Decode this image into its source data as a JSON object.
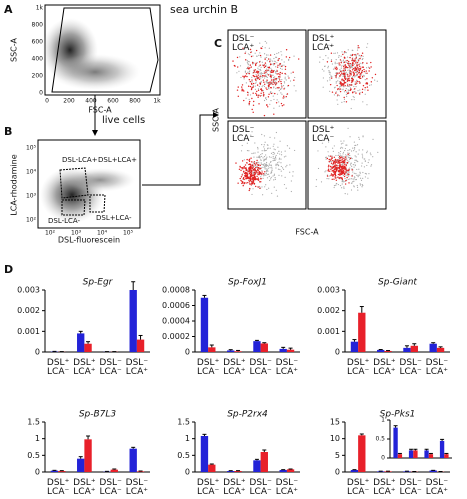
{
  "panel_a": {
    "label": "A",
    "title": "sea urchin B",
    "xlabel": "FSC-A",
    "ylabel": "SSC-A",
    "ticks": [
      "0",
      "200",
      "400",
      "600",
      "800",
      "1k"
    ],
    "gate_label": "live cells"
  },
  "panel_b": {
    "label": "B",
    "xlabel": "DSL-fluorescein",
    "ylabel": "LCA-rhodamine",
    "gates": [
      "DSL+LCA+",
      "DSL-LCA+",
      "DSL-LCA-",
      "DSL+LCA-"
    ],
    "ticks": [
      "10²",
      "10³",
      "10⁴",
      "10⁵"
    ]
  },
  "panel_c": {
    "label": "C",
    "xlabel": "FSC-A",
    "ylabel": "SSC-A",
    "quadrants": [
      "DSL⁻ LCA⁺",
      "DSL⁺ LCA⁺",
      "DSL⁻ LCA⁻",
      "DSL⁺ LCA⁻"
    ]
  },
  "panel_d": {
    "label": "D"
  },
  "chart_data": [
    {
      "type": "bar",
      "title": "Sp-Egr",
      "categories": [
        "DSL⁺ LCA⁻",
        "DSL⁺ LCA⁺",
        "DSL⁻ LCA⁻",
        "DSL⁻ LCA⁺"
      ],
      "ylim": [
        0,
        0.003
      ],
      "yticks": [
        0,
        0.001,
        0.002,
        0.003
      ],
      "series": [
        {
          "color": "#2323d8",
          "values": [
            2e-05,
            0.0009,
            1e-05,
            0.003
          ],
          "errors": [
            1e-05,
            0.0001,
            1e-05,
            0.0004
          ]
        },
        {
          "color": "#e8202a",
          "values": [
            1e-05,
            0.0004,
            1e-05,
            0.0006
          ],
          "errors": [
            1e-05,
            0.0001,
            1e-05,
            0.0002
          ]
        }
      ]
    },
    {
      "type": "bar",
      "title": "Sp-FoxJ1",
      "categories": [
        "DSL⁺ LCA⁻",
        "DSL⁺ LCA⁺",
        "DSL⁻ LCA⁻",
        "DSL⁻ LCA⁺"
      ],
      "ylim": [
        0,
        0.0008
      ],
      "yticks": [
        0,
        0.0002,
        0.0004,
        0.0006,
        0.0008
      ],
      "series": [
        {
          "color": "#2323d8",
          "values": [
            0.0007,
            2e-05,
            0.00014,
            4e-05
          ],
          "errors": [
            3e-05,
            1e-05,
            1e-05,
            2e-05
          ]
        },
        {
          "color": "#e8202a",
          "values": [
            6e-05,
            1e-05,
            0.00011,
            3e-05
          ],
          "errors": [
            3e-05,
            1e-05,
            1e-05,
            2e-05
          ]
        }
      ]
    },
    {
      "type": "bar",
      "title": "Sp-Giant",
      "categories": [
        "DSL⁺ LCA⁻",
        "DSL⁺ LCA⁺",
        "DSL⁻ LCA⁻",
        "DSL⁻ LCA⁺"
      ],
      "ylim": [
        0,
        0.003
      ],
      "yticks": [
        0,
        0.001,
        0.002,
        0.003
      ],
      "series": [
        {
          "color": "#2323d8",
          "values": [
            0.0005,
            0.0001,
            0.0002,
            0.0004
          ],
          "errors": [
            0.0001,
            2e-05,
            0.0001,
            5e-05
          ]
        },
        {
          "color": "#e8202a",
          "values": [
            0.0019,
            5e-05,
            0.0003,
            0.0002
          ],
          "errors": [
            0.0003,
            2e-05,
            0.0001,
            5e-05
          ]
        }
      ]
    },
    {
      "type": "bar",
      "title": "Sp-B7L3",
      "categories": [
        "DSL⁺ LCA⁻",
        "DSL⁺ LCA⁺",
        "DSL⁻ LCA⁻",
        "DSL⁻ LCA⁺"
      ],
      "ylim": [
        0,
        1.5
      ],
      "yticks": [
        0,
        0.5,
        1,
        1.5
      ],
      "series": [
        {
          "color": "#2323d8",
          "values": [
            0.04,
            0.4,
            0.01,
            0.7
          ],
          "errors": [
            0.01,
            0.06,
            0.01,
            0.04
          ]
        },
        {
          "color": "#e8202a",
          "values": [
            0.03,
            0.98,
            0.07,
            0.02
          ],
          "errors": [
            0.01,
            0.1,
            0.02,
            0.01
          ]
        }
      ]
    },
    {
      "type": "bar",
      "title": "Sp-P2rx4",
      "categories": [
        "DSL⁺ LCA⁻",
        "DSL⁺ LCA⁺",
        "DSL⁻ LCA⁻",
        "DSL⁻ LCA⁺"
      ],
      "ylim": [
        0,
        1.5
      ],
      "yticks": [
        0,
        0.5,
        1,
        1.5
      ],
      "series": [
        {
          "color": "#2323d8",
          "values": [
            1.08,
            0.03,
            0.35,
            0.06
          ],
          "errors": [
            0.05,
            0.01,
            0.03,
            0.01
          ]
        },
        {
          "color": "#e8202a",
          "values": [
            0.22,
            0.03,
            0.6,
            0.08
          ],
          "errors": [
            0.02,
            0.01,
            0.06,
            0.01
          ]
        }
      ]
    },
    {
      "type": "bar",
      "title": "Sp-Pks1",
      "categories": [
        "DSL⁺ LCA⁻",
        "DSL⁺ LCA⁺",
        "DSL⁻ LCA⁻",
        "DSL⁻ LCA⁺"
      ],
      "ylim": [
        0,
        15
      ],
      "yticks": [
        0,
        5,
        10,
        15
      ],
      "series": [
        {
          "color": "#2323d8",
          "values": [
            0.6,
            0.2,
            0.2,
            0.45
          ],
          "errors": [
            0.1,
            0.05,
            0.05,
            0.05
          ]
        },
        {
          "color": "#e8202a",
          "values": [
            11,
            0.2,
            0.1,
            0.1
          ],
          "errors": [
            0.4,
            0.05,
            0.05,
            0.05
          ]
        }
      ]
    },
    {
      "type": "bar",
      "ylim": [
        0,
        1
      ],
      "yticks": [
        0,
        0.5,
        1
      ],
      "series": [
        {
          "color": "#2323d8",
          "values": [
            0.8,
            0.2,
            0.2,
            0.45
          ],
          "errors": [
            0.05,
            0.03,
            0.03,
            0.04
          ]
        },
        {
          "color": "#e8202a",
          "values": [
            0.1,
            0.2,
            0.1,
            0.1
          ],
          "errors": [
            0.02,
            0.03,
            0.02,
            0.02
          ]
        }
      ]
    }
  ]
}
